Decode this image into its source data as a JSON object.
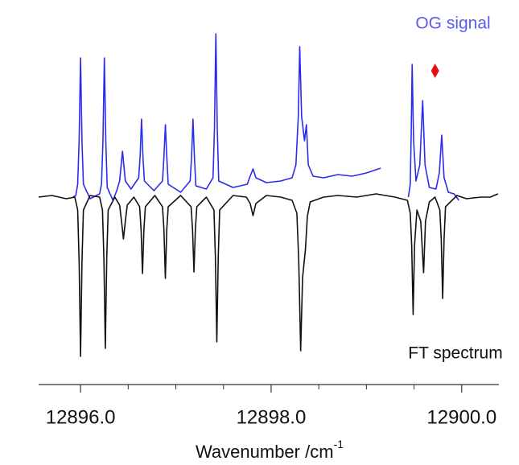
{
  "chart_data": {
    "type": "line",
    "xlabel": "Wavenumber /cm",
    "xlabel_sup": "-1",
    "xlim": [
      12895.56,
      12900.39
    ],
    "ylim": [
      -1.05,
      1.05
    ],
    "xticks": [
      {
        "value": 12896,
        "label": "12896.0"
      },
      {
        "value": 12898,
        "label": "12898.0"
      },
      {
        "value": 12900,
        "label": "12900.0"
      }
    ],
    "xminorticks": [
      12896.5,
      12897,
      12897.5,
      12898.5,
      12899,
      12899.5
    ],
    "marker": {
      "x": 12899.72,
      "y": 0.785,
      "color": "#e01010"
    },
    "series": [
      {
        "name": "OG signal",
        "color": "#2b2bef",
        "label_color": "#5a5af0",
        "x": [
          12895.92,
          12895.95,
          12895.97,
          12895.985,
          12896.0,
          12896.015,
          12896.03,
          12896.1,
          12896.2,
          12896.22,
          12896.235,
          12896.25,
          12896.265,
          12896.28,
          12896.34,
          12896.38,
          12896.41,
          12896.44,
          12896.47,
          12896.53,
          12896.61,
          12896.625,
          12896.64,
          12896.655,
          12896.67,
          12896.77,
          12896.86,
          12896.875,
          12896.89,
          12896.905,
          12896.92,
          12897.05,
          12897.15,
          12897.165,
          12897.18,
          12897.195,
          12897.21,
          12897.32,
          12897.39,
          12897.405,
          12897.42,
          12897.435,
          12897.45,
          12897.6,
          12897.75,
          12897.78,
          12897.81,
          12897.84,
          12897.95,
          12898.1,
          12898.22,
          12898.26,
          12898.285,
          12898.3,
          12898.32,
          12898.35,
          12898.37,
          12898.39,
          12898.44,
          12898.55,
          12898.7,
          12898.85,
          12899.0,
          12899.1,
          12899.15,
          null,
          12899.44,
          12899.46,
          12899.47,
          12899.48,
          12899.495,
          12899.52,
          12899.56,
          12899.59,
          12899.615,
          12899.66,
          12899.73,
          12899.765,
          12899.79,
          12899.815,
          12899.86,
          12899.92,
          12899.97
        ],
        "values": [
          0.0,
          0.01,
          0.08,
          0.35,
          0.865,
          0.35,
          0.08,
          -0.01,
          0.02,
          0.08,
          0.35,
          0.865,
          0.35,
          0.06,
          -0.02,
          0.04,
          0.1,
          0.285,
          0.1,
          0.05,
          0.12,
          0.25,
          0.485,
          0.25,
          0.1,
          0.04,
          0.1,
          0.25,
          0.45,
          0.25,
          0.08,
          0.03,
          0.1,
          0.25,
          0.485,
          0.25,
          0.07,
          0.05,
          0.12,
          0.42,
          1.015,
          0.42,
          0.1,
          0.06,
          0.08,
          0.13,
          0.175,
          0.12,
          0.09,
          0.1,
          0.12,
          0.2,
          0.5,
          0.935,
          0.5,
          0.35,
          0.45,
          0.2,
          0.13,
          0.12,
          0.14,
          0.13,
          0.15,
          0.17,
          0.18,
          null,
          0.0,
          0.08,
          0.4,
          0.825,
          0.35,
          0.1,
          0.2,
          0.6,
          0.2,
          0.06,
          0.05,
          0.15,
          0.385,
          0.12,
          0.03,
          0.02,
          -0.02
        ]
      },
      {
        "name": "FT spectrum",
        "color": "#111111",
        "label_color": "#111111",
        "x": [
          12895.56,
          12895.7,
          12895.85,
          12895.94,
          12895.97,
          12895.985,
          12896.0,
          12896.015,
          12896.03,
          12896.1,
          12896.2,
          12896.23,
          12896.245,
          12896.26,
          12896.275,
          12896.29,
          12896.36,
          12896.41,
          12896.43,
          12896.45,
          12896.47,
          12896.49,
          12896.56,
          12896.62,
          12896.635,
          12896.65,
          12896.665,
          12896.68,
          12896.78,
          12896.86,
          12896.875,
          12896.89,
          12896.905,
          12896.92,
          12897.05,
          12897.16,
          12897.175,
          12897.19,
          12897.205,
          12897.22,
          12897.32,
          12897.4,
          12897.415,
          12897.43,
          12897.445,
          12897.46,
          12897.6,
          12897.74,
          12897.78,
          12897.81,
          12897.84,
          12897.95,
          12898.1,
          12898.22,
          12898.27,
          12898.29,
          12898.31,
          12898.33,
          12898.36,
          12898.38,
          12898.41,
          12898.55,
          12898.7,
          12898.9,
          12899.1,
          12899.3,
          12899.43,
          12899.46,
          12899.475,
          12899.49,
          12899.505,
          12899.53,
          12899.57,
          12899.6,
          12899.62,
          12899.66,
          12899.72,
          12899.77,
          12899.785,
          12899.8,
          12899.815,
          12899.83,
          12899.95,
          12900.05,
          12900.2,
          12900.3,
          12900.38
        ],
        "values": [
          0.0,
          0.01,
          -0.01,
          0.0,
          -0.08,
          -0.4,
          -0.99,
          -0.4,
          -0.08,
          0.01,
          0.0,
          -0.08,
          -0.38,
          -0.94,
          -0.38,
          -0.08,
          0.0,
          -0.05,
          -0.15,
          -0.26,
          -0.15,
          -0.05,
          0.0,
          -0.06,
          -0.2,
          -0.475,
          -0.2,
          -0.06,
          0.01,
          -0.06,
          -0.2,
          -0.505,
          -0.2,
          -0.06,
          0.01,
          -0.06,
          -0.2,
          -0.465,
          -0.2,
          -0.06,
          0.0,
          -0.08,
          -0.37,
          -0.9,
          -0.37,
          -0.08,
          0.01,
          0.0,
          -0.04,
          -0.115,
          -0.04,
          0.01,
          0.0,
          -0.02,
          -0.1,
          -0.4,
          -0.955,
          -0.5,
          -0.325,
          -0.12,
          -0.03,
          0.0,
          0.01,
          0.0,
          0.02,
          0.0,
          -0.02,
          -0.1,
          -0.3,
          -0.73,
          -0.3,
          -0.08,
          -0.15,
          -0.47,
          -0.15,
          -0.03,
          0.0,
          -0.08,
          -0.26,
          -0.63,
          -0.26,
          -0.06,
          0.01,
          -0.01,
          0.0,
          0.0,
          0.02
        ]
      }
    ]
  }
}
